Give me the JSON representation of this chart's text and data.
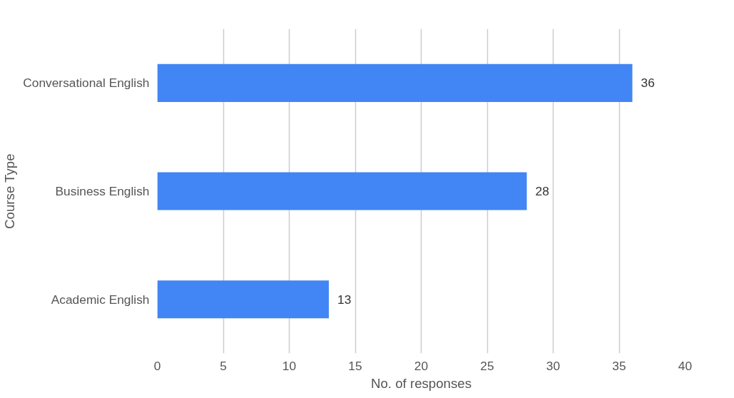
{
  "chart_data": {
    "type": "bar",
    "orientation": "horizontal",
    "ylabel": "Course Type",
    "xlabel": "No. of responses",
    "categories": [
      "Conversational English",
      "Business English",
      "Academic English"
    ],
    "values": [
      36,
      28,
      13
    ],
    "color": "#4285f4",
    "xlim": [
      0,
      40
    ],
    "xticks": [
      0,
      5,
      10,
      15,
      20,
      25,
      30,
      35,
      40
    ],
    "grid": "x",
    "data_labels": true
  }
}
